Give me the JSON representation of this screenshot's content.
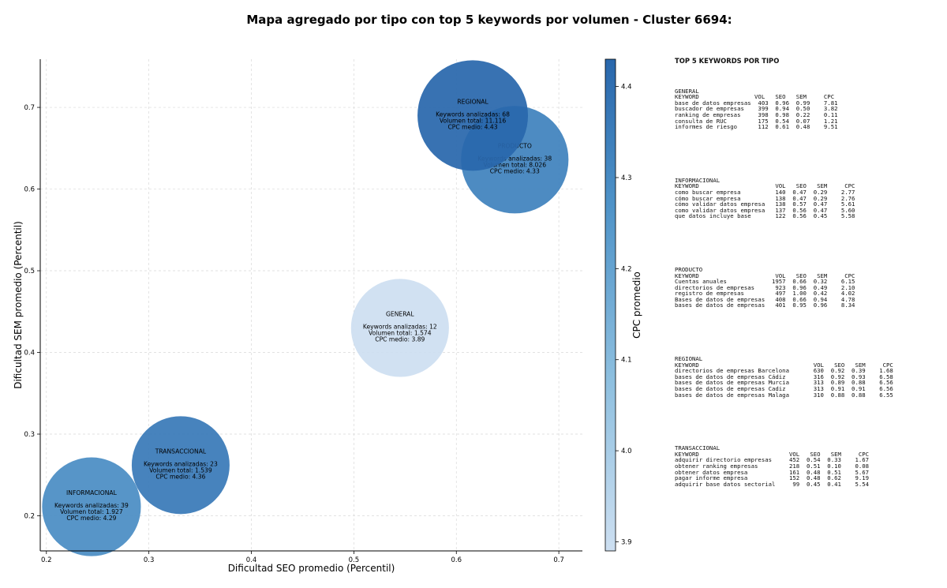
{
  "title": "Mapa agregado por tipo con top 5 keywords por volumen - Cluster 6694:",
  "chart_data": {
    "type": "scatter",
    "xlabel": "Dificultad SEO promedio (Percentil)",
    "ylabel": "Dificultad SEM promedio (Percentil)",
    "xlim": [
      0.194,
      0.723
    ],
    "ylim": [
      0.157,
      0.759
    ],
    "xticks": [
      0.2,
      0.3,
      0.4,
      0.5,
      0.6,
      0.7
    ],
    "yticks": [
      0.2,
      0.3,
      0.4,
      0.5,
      0.6,
      0.7
    ],
    "grid": true,
    "colorbar": {
      "label": "CPC promedio",
      "min": 3.89,
      "max": 4.43,
      "ticks": [
        3.9,
        4.0,
        4.1,
        4.2,
        4.3,
        4.4
      ]
    },
    "points": [
      {
        "name": "GENERAL",
        "x": 0.545,
        "y": 0.43,
        "keywords": "Keywords analizadas: 12",
        "volume": "Volumen total: 1.574",
        "cpc_text": "CPC medio: 3.89",
        "cpc": 3.89,
        "volumen": 1574
      },
      {
        "name": "INFORMACIONAL",
        "x": 0.244,
        "y": 0.211,
        "keywords": "Keywords analizadas: 39",
        "volume": "Volumen total: 1.927",
        "cpc_text": "CPC medio: 4.29",
        "cpc": 4.29,
        "volumen": 1927
      },
      {
        "name": "TRANSACCIONAL",
        "x": 0.331,
        "y": 0.262,
        "keywords": "Keywords analizadas: 23",
        "volume": "Volumen total: 1.539",
        "cpc_text": "CPC medio: 4.36",
        "cpc": 4.36,
        "volumen": 1539
      },
      {
        "name": "PRODUCTO",
        "x": 0.657,
        "y": 0.636,
        "keywords": "Keywords analizadas: 38",
        "volume": "Volumen total: 8.026",
        "cpc_text": "CPC medio: 4.33",
        "cpc": 4.33,
        "volumen": 8026
      },
      {
        "name": "REGIONAL",
        "x": 0.616,
        "y": 0.69,
        "keywords": "Keywords analizadas: 68",
        "volume": "Volumen total: 11.116",
        "cpc_text": "CPC medio: 4.43",
        "cpc": 4.43,
        "volumen": 11116
      }
    ]
  },
  "panel": {
    "title": "TOP 5 KEYWORDS POR TIPO",
    "groups": [
      {
        "name": "GENERAL",
        "lines": [
          "KEYWORD                VOL   SEO   SEM     CPC",
          "base de datos empresas  403  0.96  0.99    7.81",
          "buscador de empresas    399  0.94  0.50    3.82",
          "ranking de empresas     398  0.98  0.22    0.11",
          "consulta de RUC         175  0.54  0.07    1.21",
          "informes de riesgo      112  0.61  0.48    9.51"
        ]
      },
      {
        "name": "INFORMACIONAL",
        "lines": [
          "KEYWORD                      VOL   SEO   SEM     CPC",
          "como buscar empresa          140  0.47  0.29    2.77",
          "cómo buscar empresa          138  0.47  0.29    2.76",
          "cómo validar datos empresa   138  0.57  0.47    5.61",
          "como validar datos empresa   137  0.56  0.47    5.60",
          "que datos incluye base       122  0.56  0.45    5.58"
        ]
      },
      {
        "name": "PRODUCTO",
        "lines": [
          "KEYWORD                      VOL   SEO   SEM     CPC",
          "Cuentas anuales             1957  0.66  0.32    6.15",
          "directorios de empresas      923  0.96  0.49    2.10",
          "registro de empresas         497  1.00  0.42    4.02",
          "Bases de datos de empresas   408  0.66  0.94    4.78",
          "bases de datos de empresas   401  0.95  0.96    8.34"
        ]
      },
      {
        "name": "REGIONAL",
        "lines": [
          "KEYWORD                                 VOL   SEO   SEM     CPC",
          "directorios de empresas Barcelona       630  0.92  0.39    1.68",
          "bases de datos de empresas Cádiz        316  0.92  0.93    6.58",
          "bases de datos de empresas Murcia       313  0.89  0.88    6.56",
          "bases de datos de empresas Cadiz        313  0.91  0.91    6.56",
          "bases de datos de empresas Malaga       310  0.88  0.88    6.55"
        ]
      },
      {
        "name": "TRANSACCIONAL",
        "lines": [
          "KEYWORD                          VOL   SEO   SEM     CPC",
          "adquirir directorio empresas     452  0.54  0.33    1.67",
          "obtener ranking empresas         218  0.51  0.10    0.08",
          "obtener datos empresa            161  0.48  0.51    5.67",
          "pagar informe empresa            152  0.48  0.62    9.19",
          "adquirir base datos sectorial     99  0.45  0.41    5.54"
        ]
      }
    ]
  }
}
